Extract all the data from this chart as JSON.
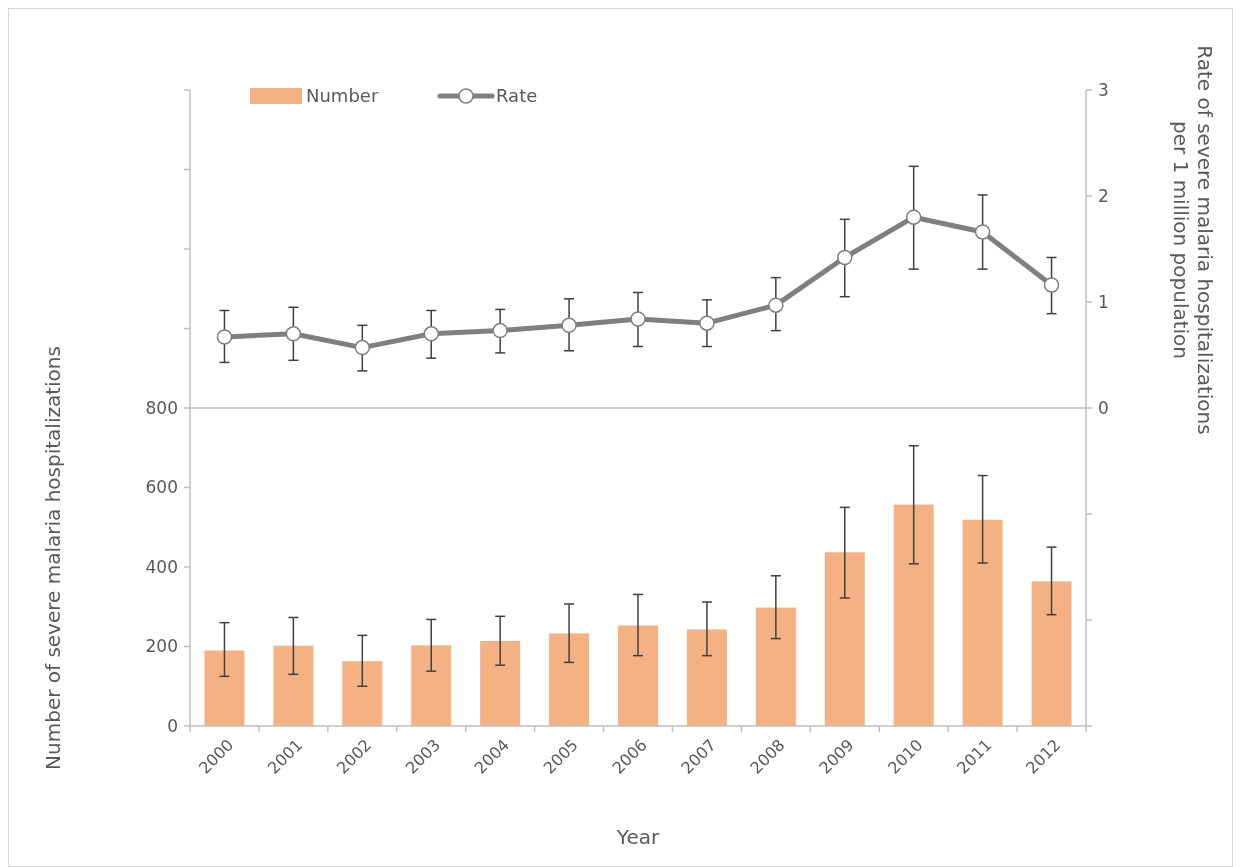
{
  "chart_data": {
    "type": "bar",
    "xlabel": "Year",
    "ylabel": "Number of severe malaria hospitalizations",
    "y2label": "Rate of severe malaria hospitalizations per 1 million population",
    "categories": [
      "2000",
      "2001",
      "2002",
      "2003",
      "2004",
      "2005",
      "2006",
      "2007",
      "2008",
      "2009",
      "2010",
      "2011",
      "2012"
    ],
    "series": [
      {
        "name": "Number",
        "color": "#f4b183",
        "values": [
          190,
          202,
          163,
          203,
          214,
          233,
          253,
          243,
          298,
          437,
          557,
          519,
          364
        ],
        "errors": [
          [
            125,
            260
          ],
          [
            130,
            273
          ],
          [
            100,
            228
          ],
          [
            138,
            268
          ],
          [
            153,
            276
          ],
          [
            160,
            307
          ],
          [
            177,
            331
          ],
          [
            177,
            312
          ],
          [
            220,
            378
          ],
          [
            322,
            550
          ],
          [
            408,
            705
          ],
          [
            410,
            630
          ],
          [
            280,
            450
          ]
        ]
      },
      {
        "name": "Rate",
        "type": "line",
        "axis": "y2",
        "color": "#7f7f7f",
        "marker": "circle",
        "values": [
          0.67,
          0.7,
          0.57,
          0.7,
          0.73,
          0.78,
          0.84,
          0.8,
          0.97,
          1.42,
          1.8,
          1.66,
          1.16
        ],
        "errors": [
          [
            0.43,
            0.92
          ],
          [
            0.45,
            0.95
          ],
          [
            0.35,
            0.78
          ],
          [
            0.47,
            0.92
          ],
          [
            0.52,
            0.93
          ],
          [
            0.54,
            1.03
          ],
          [
            0.58,
            1.09
          ],
          [
            0.58,
            1.02
          ],
          [
            0.73,
            1.23
          ],
          [
            1.05,
            1.78
          ],
          [
            1.31,
            2.28
          ],
          [
            1.31,
            2.01
          ],
          [
            0.89,
            1.42
          ]
        ]
      }
    ],
    "ylim": [
      0,
      1600
    ],
    "yticks": [
      0,
      200,
      400,
      600,
      800,
      {
        "value": 1000,
        "label": null
      },
      {
        "value": 1200,
        "label": null
      },
      {
        "value": 1400,
        "label": null
      },
      {
        "value": 1600,
        "label": null
      }
    ],
    "y2lim": [
      -3,
      3
    ],
    "y2ticks": [
      {
        "value": -3,
        "label": null
      },
      {
        "value": -2,
        "label": null
      },
      {
        "value": -1,
        "label": null
      },
      0,
      1,
      2,
      3
    ],
    "ref_lines": [
      {
        "axis": "y2",
        "value": 0,
        "color": "#bfbfbf"
      }
    ],
    "legend": "top left",
    "grid": false
  }
}
